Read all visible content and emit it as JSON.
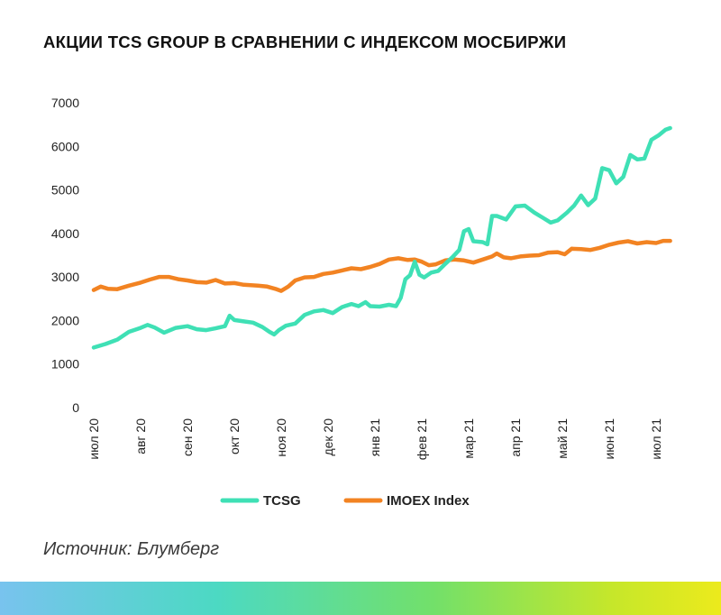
{
  "title": "АКЦИИ TCS GROUP В СРАВНЕНИИ С ИНДЕКСОМ МОСБИРЖИ",
  "source": "Источник: Блумберг",
  "chart_data": {
    "type": "line",
    "title": "АКЦИИ TCS GROUP В СРАВНЕНИИ С ИНДЕКСОМ МОСБИРЖИ",
    "xlabel": "",
    "ylabel": "",
    "ylim": [
      0,
      7000
    ],
    "yticks": [
      0,
      1000,
      2000,
      3000,
      4000,
      5000,
      6000,
      7000
    ],
    "xlim": [
      0,
      12.3
    ],
    "xticks": [
      {
        "x": 0,
        "label": "июл 20"
      },
      {
        "x": 1,
        "label": "авг 20"
      },
      {
        "x": 2,
        "label": "сен 20"
      },
      {
        "x": 3,
        "label": "окт 20"
      },
      {
        "x": 4,
        "label": "ноя 20"
      },
      {
        "x": 5,
        "label": "дек 20"
      },
      {
        "x": 6,
        "label": "янв 21"
      },
      {
        "x": 7,
        "label": "фев 21"
      },
      {
        "x": 8,
        "label": "мар 21"
      },
      {
        "x": 9,
        "label": "апр 21"
      },
      {
        "x": 10,
        "label": "май 21"
      },
      {
        "x": 11,
        "label": "июн 21"
      },
      {
        "x": 12,
        "label": "июл 21"
      }
    ],
    "grid": false,
    "legend": "bottom-center",
    "series": [
      {
        "name": "TCSG",
        "color": "#3fe0b5",
        "points": [
          [
            0.0,
            1380
          ],
          [
            0.25,
            1460
          ],
          [
            0.5,
            1560
          ],
          [
            0.75,
            1740
          ],
          [
            1.0,
            1830
          ],
          [
            1.15,
            1900
          ],
          [
            1.3,
            1840
          ],
          [
            1.5,
            1720
          ],
          [
            1.75,
            1830
          ],
          [
            2.0,
            1870
          ],
          [
            2.2,
            1800
          ],
          [
            2.4,
            1780
          ],
          [
            2.6,
            1820
          ],
          [
            2.8,
            1870
          ],
          [
            2.9,
            2110
          ],
          [
            3.0,
            2010
          ],
          [
            3.2,
            1980
          ],
          [
            3.4,
            1950
          ],
          [
            3.6,
            1850
          ],
          [
            3.75,
            1740
          ],
          [
            3.85,
            1680
          ],
          [
            3.95,
            1780
          ],
          [
            4.1,
            1880
          ],
          [
            4.3,
            1930
          ],
          [
            4.5,
            2130
          ],
          [
            4.7,
            2210
          ],
          [
            4.9,
            2240
          ],
          [
            5.1,
            2170
          ],
          [
            5.3,
            2310
          ],
          [
            5.5,
            2380
          ],
          [
            5.65,
            2330
          ],
          [
            5.8,
            2420
          ],
          [
            5.9,
            2330
          ],
          [
            6.1,
            2320
          ],
          [
            6.3,
            2360
          ],
          [
            6.45,
            2330
          ],
          [
            6.55,
            2520
          ],
          [
            6.65,
            2950
          ],
          [
            6.75,
            3040
          ],
          [
            6.85,
            3350
          ],
          [
            6.95,
            3050
          ],
          [
            7.05,
            2990
          ],
          [
            7.2,
            3100
          ],
          [
            7.35,
            3140
          ],
          [
            7.5,
            3300
          ],
          [
            7.65,
            3450
          ],
          [
            7.8,
            3620
          ],
          [
            7.9,
            4050
          ],
          [
            8.0,
            4100
          ],
          [
            8.1,
            3820
          ],
          [
            8.3,
            3800
          ],
          [
            8.4,
            3750
          ],
          [
            8.5,
            4400
          ],
          [
            8.6,
            4400
          ],
          [
            8.8,
            4320
          ],
          [
            9.0,
            4620
          ],
          [
            9.2,
            4640
          ],
          [
            9.4,
            4480
          ],
          [
            9.6,
            4350
          ],
          [
            9.75,
            4250
          ],
          [
            9.9,
            4300
          ],
          [
            10.1,
            4480
          ],
          [
            10.25,
            4640
          ],
          [
            10.4,
            4870
          ],
          [
            10.55,
            4650
          ],
          [
            10.7,
            4800
          ],
          [
            10.85,
            5500
          ],
          [
            11.0,
            5450
          ],
          [
            11.15,
            5150
          ],
          [
            11.3,
            5300
          ],
          [
            11.45,
            5800
          ],
          [
            11.6,
            5700
          ],
          [
            11.75,
            5720
          ],
          [
            11.9,
            6150
          ],
          [
            12.05,
            6250
          ],
          [
            12.2,
            6380
          ],
          [
            12.3,
            6420
          ]
        ]
      },
      {
        "name": "IMOEX Index",
        "color": "#f28322",
        "points": [
          [
            0.0,
            2700
          ],
          [
            0.15,
            2780
          ],
          [
            0.3,
            2730
          ],
          [
            0.5,
            2720
          ],
          [
            0.75,
            2800
          ],
          [
            1.0,
            2870
          ],
          [
            1.2,
            2940
          ],
          [
            1.4,
            3000
          ],
          [
            1.6,
            3000
          ],
          [
            1.8,
            2950
          ],
          [
            2.0,
            2920
          ],
          [
            2.2,
            2880
          ],
          [
            2.4,
            2870
          ],
          [
            2.6,
            2930
          ],
          [
            2.8,
            2850
          ],
          [
            3.0,
            2860
          ],
          [
            3.2,
            2820
          ],
          [
            3.5,
            2800
          ],
          [
            3.7,
            2780
          ],
          [
            3.9,
            2720
          ],
          [
            4.0,
            2680
          ],
          [
            4.15,
            2780
          ],
          [
            4.3,
            2920
          ],
          [
            4.5,
            2990
          ],
          [
            4.7,
            3000
          ],
          [
            4.9,
            3070
          ],
          [
            5.1,
            3100
          ],
          [
            5.3,
            3150
          ],
          [
            5.5,
            3200
          ],
          [
            5.7,
            3180
          ],
          [
            5.9,
            3230
          ],
          [
            6.1,
            3300
          ],
          [
            6.3,
            3400
          ],
          [
            6.5,
            3430
          ],
          [
            6.7,
            3390
          ],
          [
            6.85,
            3400
          ],
          [
            7.0,
            3350
          ],
          [
            7.15,
            3270
          ],
          [
            7.3,
            3290
          ],
          [
            7.5,
            3380
          ],
          [
            7.7,
            3400
          ],
          [
            7.9,
            3380
          ],
          [
            8.1,
            3330
          ],
          [
            8.3,
            3400
          ],
          [
            8.5,
            3470
          ],
          [
            8.6,
            3540
          ],
          [
            8.75,
            3450
          ],
          [
            8.9,
            3430
          ],
          [
            9.1,
            3470
          ],
          [
            9.3,
            3490
          ],
          [
            9.5,
            3500
          ],
          [
            9.7,
            3560
          ],
          [
            9.9,
            3570
          ],
          [
            10.05,
            3520
          ],
          [
            10.2,
            3650
          ],
          [
            10.4,
            3640
          ],
          [
            10.6,
            3620
          ],
          [
            10.8,
            3670
          ],
          [
            11.0,
            3740
          ],
          [
            11.2,
            3790
          ],
          [
            11.4,
            3820
          ],
          [
            11.6,
            3770
          ],
          [
            11.8,
            3800
          ],
          [
            12.0,
            3780
          ],
          [
            12.15,
            3830
          ],
          [
            12.3,
            3830
          ]
        ]
      }
    ]
  }
}
